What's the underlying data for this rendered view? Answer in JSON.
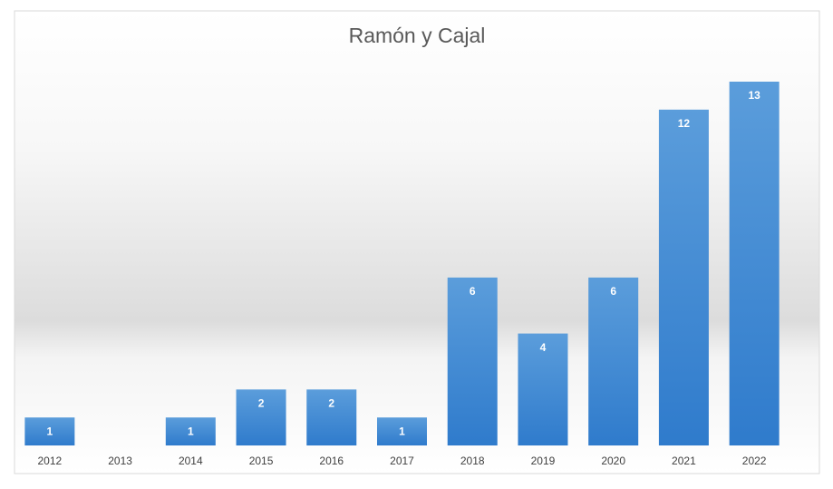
{
  "chart_data": {
    "type": "bar",
    "title": "Ramón y Cajal",
    "categories": [
      "2012",
      "2013",
      "2014",
      "2015",
      "2016",
      "2017",
      "2018",
      "2019",
      "2020",
      "2021",
      "2022"
    ],
    "values": [
      1,
      null,
      1,
      2,
      2,
      1,
      6,
      4,
      6,
      12,
      13
    ],
    "color": "#4a8fd6",
    "ylim": [
      0,
      13
    ]
  }
}
